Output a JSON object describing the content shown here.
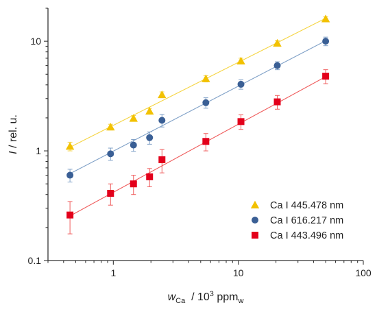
{
  "chart_data": {
    "type": "scatter",
    "xscale": "log",
    "yscale": "log",
    "xlim": [
      0.3,
      100
    ],
    "ylim": [
      0.1,
      20
    ],
    "grid": false,
    "legend_position": "bottom-right",
    "x_ticks": [
      {
        "value": 1,
        "label": "1"
      },
      {
        "value": 10,
        "label": "10"
      },
      {
        "value": 100,
        "label": "100"
      }
    ],
    "y_ticks": [
      {
        "value": 0.1,
        "label": "0.1"
      },
      {
        "value": 1,
        "label": "1"
      },
      {
        "value": 10,
        "label": "10"
      }
    ],
    "xlabel": {
      "main": "w",
      "sub": "Ca",
      "rest": " / 10",
      "sup": "3",
      "unit": " ppm",
      "unit_sub": "w"
    },
    "ylabel": {
      "main": "I",
      "rest": " / rel. u."
    },
    "x": [
      0.45,
      0.95,
      1.45,
      1.95,
      2.45,
      5.5,
      10.5,
      20.5,
      50
    ],
    "series": [
      {
        "name": "Ca I 445.478 nm",
        "marker": "triangle",
        "color": "#f2c100",
        "line_color": "#f5d442",
        "values": [
          1.1,
          1.65,
          1.98,
          2.3,
          3.25,
          4.55,
          6.6,
          9.6,
          16.0
        ],
        "errors": [
          0.1,
          0.1,
          0.12,
          0.14,
          0.2,
          0.3,
          0.4,
          0.5,
          0.7
        ],
        "fit": [
          1.08,
          16.2
        ]
      },
      {
        "name": "Ca I 616.217 nm",
        "marker": "circle",
        "color": "#3a5f95",
        "line_color": "#7fa0c7",
        "values": [
          0.6,
          0.94,
          1.13,
          1.32,
          1.9,
          2.75,
          4.05,
          6.0,
          10.0
        ],
        "errors": [
          0.08,
          0.12,
          0.14,
          0.17,
          0.25,
          0.3,
          0.4,
          0.5,
          0.9
        ],
        "fit": [
          0.62,
          10.1
        ]
      },
      {
        "name": "Ca I 443.496 nm",
        "marker": "square",
        "color": "#e3001b",
        "line_color": "#ef5a5a",
        "values": [
          0.26,
          0.41,
          0.5,
          0.58,
          0.83,
          1.22,
          1.85,
          2.8,
          4.8
        ],
        "errors": [
          0.085,
          0.09,
          0.1,
          0.11,
          0.2,
          0.22,
          0.28,
          0.4,
          0.7
        ],
        "fit": [
          0.255,
          4.75
        ]
      }
    ]
  }
}
